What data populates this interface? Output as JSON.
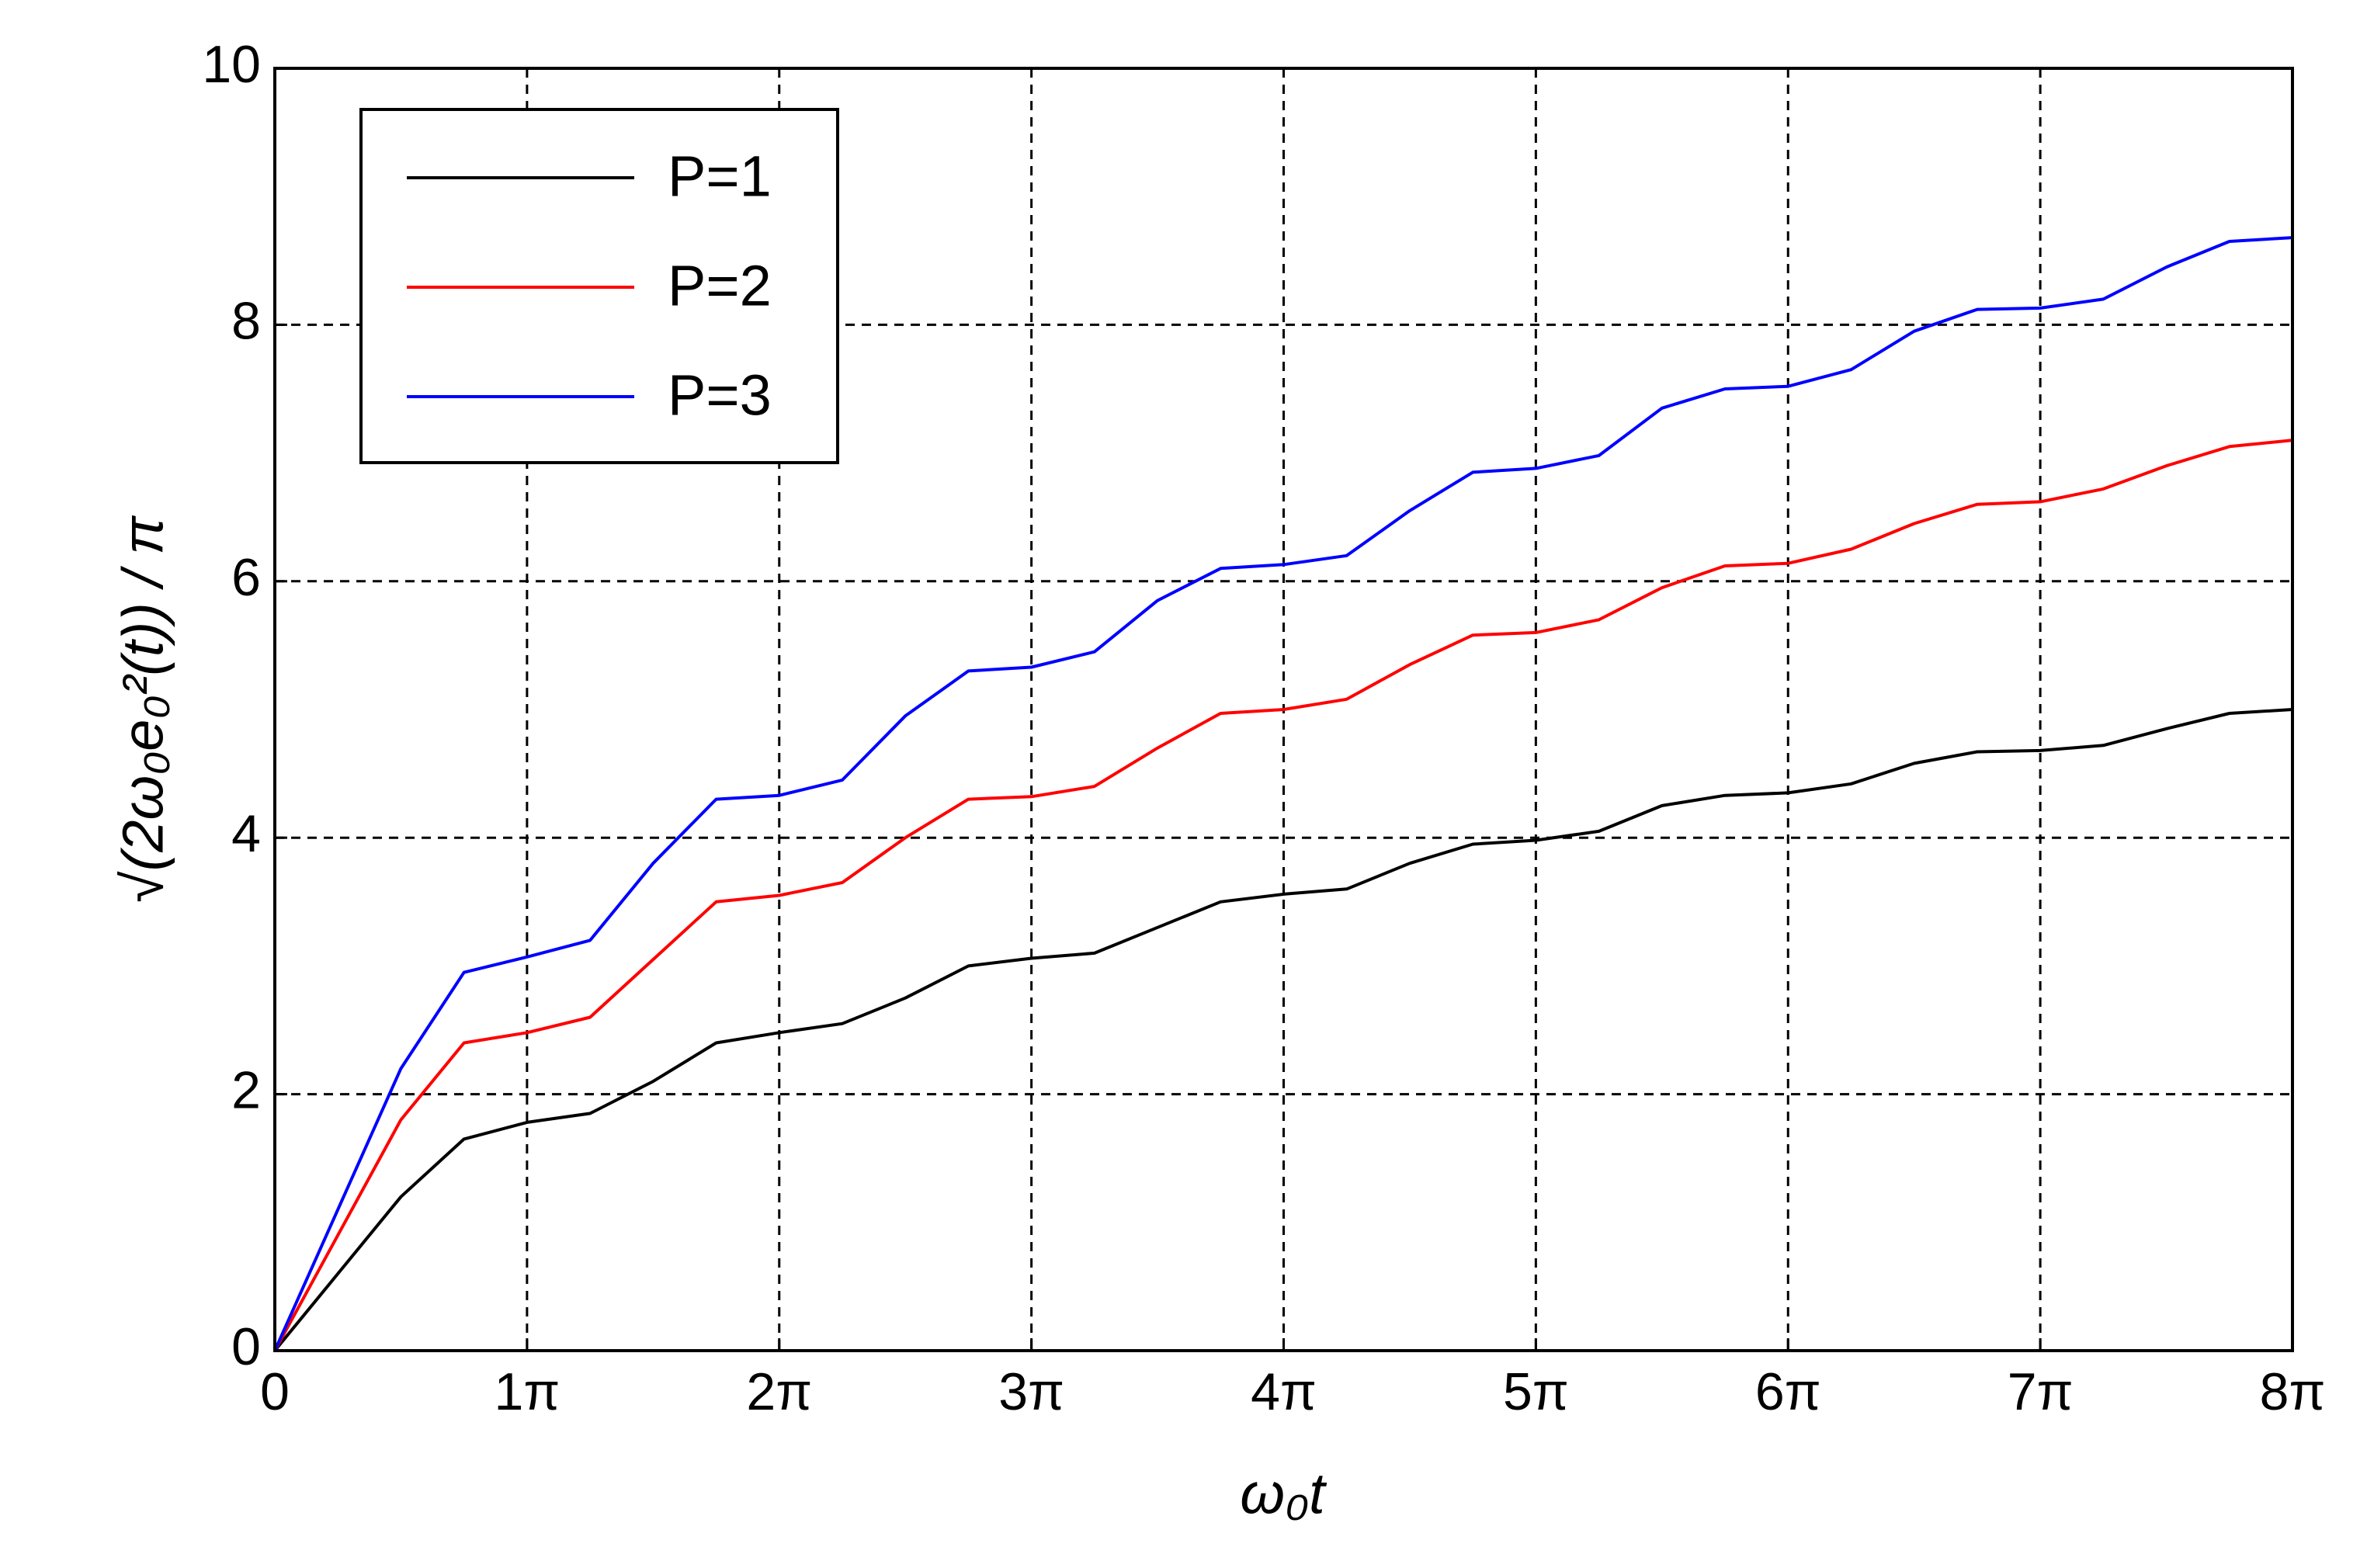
{
  "chart_data": {
    "type": "line",
    "xlabel": "ω₀t",
    "ylabel": "√(2ω₀e₀²(t)) / π",
    "x": [
      0,
      0.25,
      0.5,
      0.75,
      1,
      1.25,
      1.5,
      1.75,
      2,
      2.25,
      2.5,
      2.75,
      3,
      3.25,
      3.5,
      3.75,
      4,
      4.25,
      4.5,
      4.75,
      5,
      5.25,
      5.5,
      5.75,
      6,
      6.25,
      6.5,
      6.75,
      7,
      7.25,
      7.5,
      7.75,
      8
    ],
    "series": [
      {
        "name": "P=1",
        "color": "#000000",
        "values": [
          0,
          0.6,
          1.2,
          1.65,
          1.78,
          1.85,
          2.1,
          2.4,
          2.48,
          2.55,
          2.75,
          3.0,
          3.06,
          3.1,
          3.3,
          3.5,
          3.56,
          3.6,
          3.8,
          3.95,
          3.98,
          4.05,
          4.25,
          4.33,
          4.35,
          4.42,
          4.58,
          4.67,
          4.68,
          4.72,
          4.85,
          4.97,
          5.0
        ]
      },
      {
        "name": "P=2",
        "color": "#ff0000",
        "values": [
          0,
          0.9,
          1.8,
          2.4,
          2.48,
          2.6,
          3.05,
          3.5,
          3.55,
          3.65,
          4.0,
          4.3,
          4.32,
          4.4,
          4.7,
          4.97,
          5.0,
          5.08,
          5.35,
          5.58,
          5.6,
          5.7,
          5.95,
          6.12,
          6.14,
          6.25,
          6.45,
          6.6,
          6.62,
          6.72,
          6.9,
          7.05,
          7.1
        ]
      },
      {
        "name": "P=3",
        "color": "#0000ff",
        "values": [
          0,
          1.1,
          2.2,
          2.95,
          3.07,
          3.2,
          3.8,
          4.3,
          4.33,
          4.45,
          4.95,
          5.3,
          5.33,
          5.45,
          5.85,
          6.1,
          6.13,
          6.2,
          6.55,
          6.85,
          6.88,
          6.98,
          7.35,
          7.5,
          7.52,
          7.65,
          7.95,
          8.12,
          8.13,
          8.2,
          8.45,
          8.65,
          8.68
        ]
      }
    ],
    "xlim": [
      0,
      8
    ],
    "xticks": [
      0,
      {
        "value": 1,
        "label": "1π"
      },
      {
        "value": 2,
        "label": "2π"
      },
      {
        "value": 3,
        "label": "3π"
      },
      {
        "value": 4,
        "label": "4π"
      },
      {
        "value": 5,
        "label": "5π"
      },
      {
        "value": 6,
        "label": "6π"
      },
      {
        "value": 7,
        "label": "7π"
      },
      {
        "value": 8,
        "label": "8π"
      }
    ],
    "ylim": [
      0,
      10
    ],
    "yticks": [
      0,
      2,
      4,
      6,
      8,
      10
    ],
    "grid": true,
    "legend": "upper left"
  }
}
